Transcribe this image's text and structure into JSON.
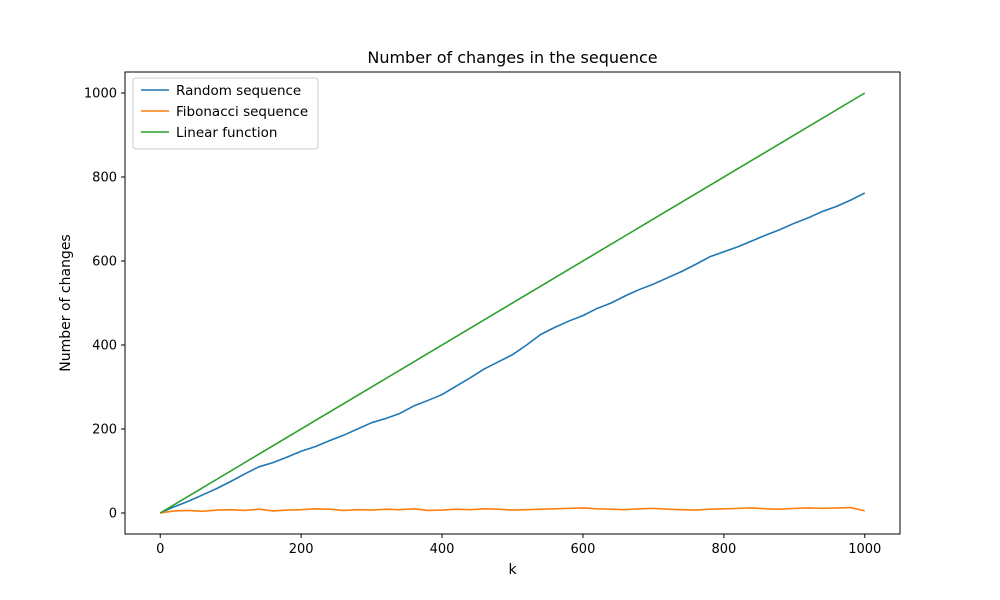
{
  "chart_data": {
    "type": "line",
    "title": "Number of changes in the sequence",
    "xlabel": "k",
    "ylabel": "Number of changes",
    "xlim": [
      -50,
      1050
    ],
    "ylim": [
      -50,
      1050
    ],
    "xticks": [
      0,
      200,
      400,
      600,
      800,
      1000
    ],
    "yticks": [
      0,
      200,
      400,
      600,
      800,
      1000
    ],
    "grid": false,
    "legend_position": "top-left",
    "series": [
      {
        "name": "Random sequence",
        "color": "#1f77b4",
        "x": [
          0,
          20,
          40,
          60,
          80,
          100,
          120,
          140,
          160,
          180,
          200,
          220,
          240,
          260,
          280,
          300,
          320,
          340,
          360,
          380,
          400,
          420,
          440,
          460,
          480,
          500,
          520,
          540,
          560,
          580,
          600,
          620,
          640,
          660,
          680,
          700,
          720,
          740,
          760,
          780,
          800,
          820,
          840,
          860,
          880,
          900,
          920,
          940,
          960,
          980,
          1000
        ],
        "y": [
          0,
          15,
          28,
          43,
          58,
          75,
          93,
          110,
          120,
          133,
          147,
          158,
          172,
          185,
          200,
          215,
          225,
          237,
          255,
          268,
          282,
          302,
          322,
          343,
          360,
          377,
          400,
          425,
          442,
          457,
          470,
          487,
          500,
          517,
          532,
          545,
          560,
          575,
          592,
          610,
          622,
          634,
          648,
          662,
          675,
          690,
          703,
          718,
          730,
          745,
          762
        ]
      },
      {
        "name": "Fibonacci sequence",
        "color": "#ff7f0e",
        "x": [
          0,
          20,
          40,
          60,
          80,
          100,
          120,
          140,
          160,
          180,
          200,
          220,
          240,
          260,
          280,
          300,
          320,
          340,
          360,
          380,
          400,
          420,
          440,
          460,
          480,
          500,
          520,
          540,
          560,
          580,
          600,
          620,
          640,
          660,
          680,
          700,
          720,
          740,
          760,
          780,
          800,
          820,
          840,
          860,
          880,
          900,
          920,
          940,
          960,
          980,
          1000
        ],
        "y": [
          0,
          5,
          6,
          4,
          7,
          8,
          6,
          9,
          5,
          7,
          8,
          10,
          9,
          6,
          8,
          7,
          9,
          8,
          10,
          6,
          7,
          9,
          8,
          10,
          9,
          7,
          8,
          9,
          10,
          11,
          12,
          10,
          9,
          8,
          10,
          11,
          9,
          8,
          7,
          9,
          10,
          11,
          12,
          10,
          9,
          11,
          12,
          11,
          12,
          13,
          5
        ]
      },
      {
        "name": "Linear function",
        "color": "#2ca02c",
        "x": [
          0,
          1000
        ],
        "y": [
          0,
          1000
        ]
      }
    ]
  }
}
